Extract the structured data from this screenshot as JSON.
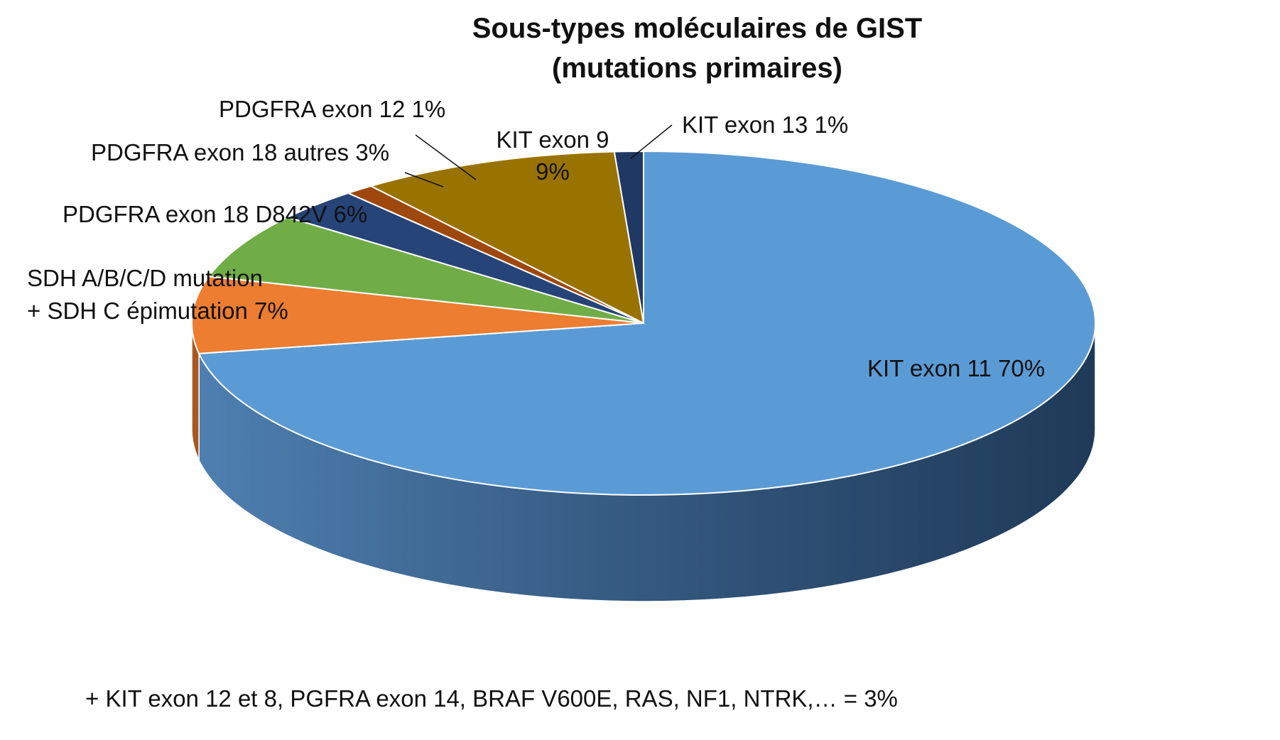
{
  "title_line1": "Sous-types moléculaires de GIST",
  "title_line2": "(mutations primaires)",
  "footnote": "+ KIT exon 12 et 8, PGFRA exon 14, BRAF V600E, RAS, NF1, NTRK,… = 3%",
  "chart_data": {
    "type": "pie",
    "style": "3d",
    "start": "12 o'clock",
    "direction": "clockwise",
    "slices": [
      {
        "label_lines": [
          "KIT exon 11  70%"
        ],
        "value": 70,
        "color": "#5B9BD5",
        "side_color": "#3D6E9E"
      },
      {
        "label_lines": [
          "SDH A/B/C/D mutation",
          "+ SDH C épimutation  7%"
        ],
        "value": 7,
        "color": "#ED7D31",
        "side_color": "#A9561F"
      },
      {
        "label_lines": [
          "PDGFRA exon 18 D842V 6%"
        ],
        "value": 6,
        "color": "#70AD47",
        "side_color": "#4E7C31"
      },
      {
        "label_lines": [
          "PDGFRA exon 18 autres 3%"
        ],
        "value": 3,
        "color": "#264478",
        "side_color": "#172B4D"
      },
      {
        "label_lines": [
          "PDGFRA exon 12 1%"
        ],
        "value": 1,
        "color": "#9E480E",
        "side_color": "#6B3009"
      },
      {
        "label_lines": [
          "KIT exon 9",
          "9%"
        ],
        "value": 9,
        "color": "#997300",
        "side_color": "#6B5100"
      },
      {
        "label_lines": [
          "KIT exon 13  1%"
        ],
        "value": 1,
        "color": "#1F3864",
        "side_color": "#14243F"
      }
    ]
  }
}
